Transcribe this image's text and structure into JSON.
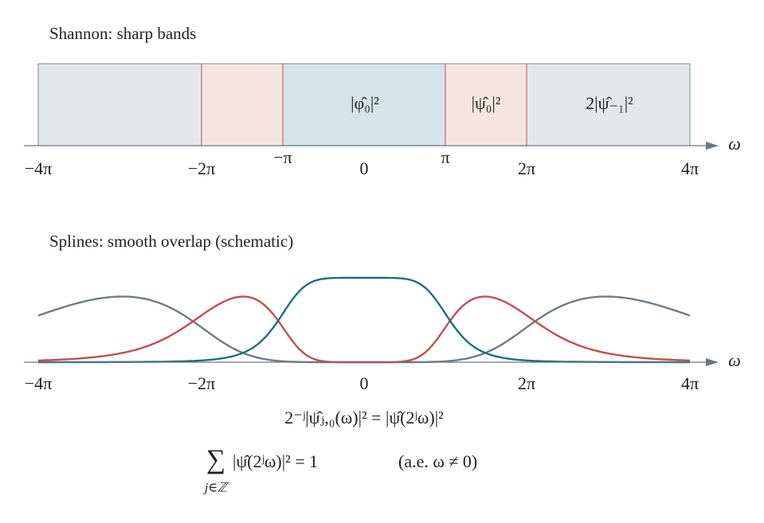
{
  "panels": [
    {
      "title": "Shannon: sharp bands",
      "band_labels": [
        "|φ̂₀|²",
        "|ψ̂₀|²",
        "2|ψ̂₋₁|²"
      ],
      "tick_labels": [
        "−4π",
        "−2π",
        "−π",
        "0",
        "π",
        "2π",
        "4π"
      ],
      "axis_label": "ω"
    },
    {
      "title": "Splines: smooth overlap (schematic)",
      "tick_labels": [
        "−4π",
        "−2π",
        "0",
        "2π",
        "4π"
      ],
      "axis_label": "ω"
    }
  ],
  "formulas": {
    "scaling": "2⁻ʲ|ψ̂ⱼ,₀(ω)|² = |ψ̂(2ʲω)|²",
    "sum_symbol": "∑",
    "sum_index": "j∈ℤ",
    "sum_body": "|ψ̂(2ʲω)|² = 1",
    "sum_note": "(a.e. ω ≠ 0)"
  }
}
